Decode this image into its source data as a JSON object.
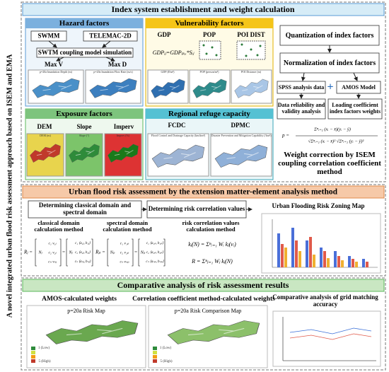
{
  "side_title": "A novel integrated urban flood risk assessment approach based on ISEM and EMA",
  "section1": {
    "title": "Index system establishment and weight calculation",
    "hazard": {
      "title": "Hazard factors",
      "models": [
        "SWMM",
        "TELEMAC-2D"
      ],
      "coupling": "SWTM coupling model simulation",
      "outputs": [
        "Max  V",
        "Max  D"
      ],
      "maps": [
        "p=20a Inundation Depth (m)",
        "p=20a Inundation Flow Rate (m/s)"
      ]
    },
    "vulnerability": {
      "title": "Vulnerability factors",
      "items": [
        "GDP",
        "POP",
        "POI DIST"
      ],
      "formula": "GDPᵢⱼ=GDPₚᵢₓ*Sᵢⱼ",
      "maps": [
        "GDP (¥/m²)",
        "POP (person/m²)",
        "POI Distance (m)"
      ]
    },
    "exposure": {
      "title": "Exposure factors",
      "items": [
        "DEM",
        "Slope",
        "Imperv"
      ],
      "maps": [
        "DEM (m)",
        "Slope (°)",
        "Imperv (%)"
      ]
    },
    "refuge": {
      "title": "Regional refuge capacity",
      "items": [
        "FCDC",
        "DPMC"
      ],
      "maps": [
        "Flood Control and Drainage Capacity (km/km²)",
        "Disaster Prevention and Mitigation Capability (/km²)"
      ]
    },
    "steps": {
      "quantization": "Quantization of index factors",
      "normalization": "Normalization of index factors",
      "spss": "SPSS analysis data",
      "amos": "AMOS Model",
      "reliability": "Data reliability and validity analysis",
      "loading": "Loading coefficient index factors weights",
      "formula_lhs": "p =",
      "formula_num": "Σⁿᵢ₌₁ (xᵢ − x̄)(yᵢ − ȳ)",
      "formula_den": "√Σⁿᵢ₌₁ (xᵢ − x̄)² √Σⁿᵢ₌₁ (yᵢ − ȳ)²",
      "correction": "Weight correction by ISEM coupling correlation coefficient method"
    }
  },
  "section2": {
    "title": "Urban flood risk assessment by the extension matter-element analysis method",
    "headers": [
      "Determining classical domain and spectral domain",
      "Determining risk correlation values",
      "Urban Flooding Risk Zoning Map"
    ],
    "methods": [
      "classical domain calculation method",
      "spectral domain calculation method",
      "risk correlation values calculation method"
    ],
    "classical": {
      "lhs": "Rⱼ =",
      "n": "Nⱼ",
      "rows": [
        "c₁  v₁ⱼ",
        "c₂  v₂ⱼ",
        "cₙ  vₙⱼ"
      ],
      "rows2": [
        "c₁ ⟨a₁ⱼ, b₁ⱼ⟩",
        "c₂ ⟨a₂ⱼ, b₂ⱼ⟩",
        "cₙ ⟨aₙⱼ, bₙⱼ⟩"
      ]
    },
    "spectral": {
      "lhs": "Rₚ =",
      "n": "Nₚ",
      "rows": [
        "c₁  v₁ₚ",
        "c₂  v₂ₚ",
        "cₙ  vₙₚ"
      ],
      "rows2": [
        "c₁ ⟨a₁ₚ, b₁ₚ⟩",
        "c₂ ⟨a₂ₚ, b₂ₚ⟩",
        "cₙ ⟨aₙₚ, bₙₚ⟩"
      ]
    },
    "correlation": [
      "kⱼ(N) = Σⁿᵢ₌₁ Wᵢ kⱼ(vᵢ)",
      "R = Σⁿⱼ₌₁ Wⱼ kⱼ(N)"
    ]
  },
  "section3": {
    "title": "Comparative analysis of risk assessment results",
    "headers": [
      "AMOS-calculated  weights",
      "Correlation coefficient method-calculated weights",
      "Comparative analysis of grid matching accuracy"
    ],
    "maps": [
      "p=20a Risk Map",
      "p=20a Risk Comparison Map"
    ],
    "legend": [
      "1  (Low)",
      "5  (High)"
    ]
  }
}
